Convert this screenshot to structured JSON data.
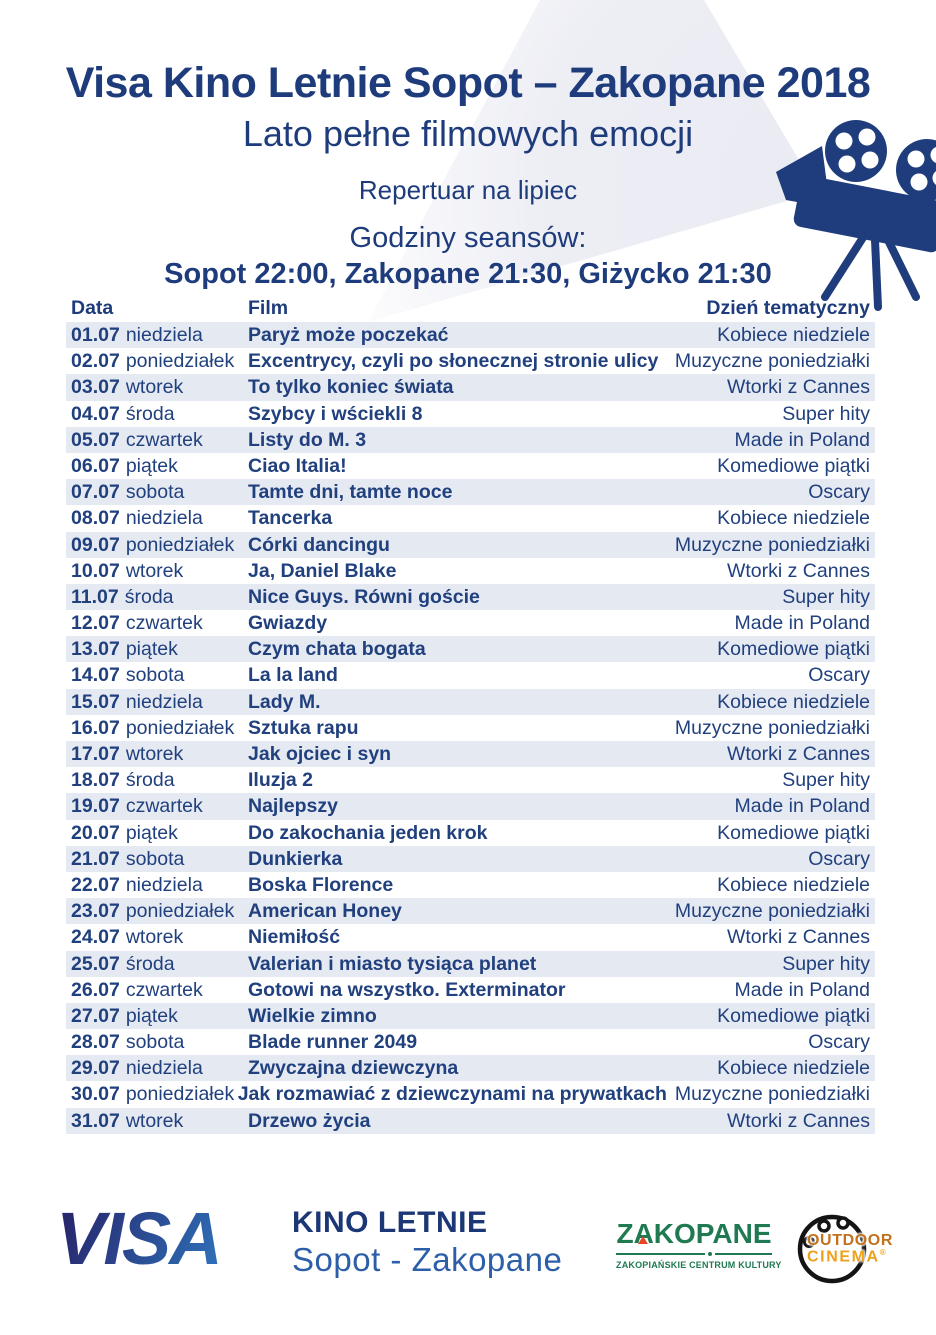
{
  "header": {
    "title": "Visa Kino Letnie Sopot – Zakopane 2018",
    "subtitle": "Lato pełne filmowych emocji",
    "repertoire": "Repertuar na lipiec",
    "showtimes_label": "Godziny seansów:",
    "showtimes": "Sopot 22:00, Zakopane 21:30, Giżycko 21:30"
  },
  "table": {
    "columns": [
      "Data",
      "Film",
      "Dzień tematyczny"
    ],
    "rows": [
      {
        "date": "01.07",
        "day": "niedziela",
        "film": "Paryż może poczekać",
        "theme": "Kobiece niedziele"
      },
      {
        "date": "02.07",
        "day": "poniedziałek",
        "film": "Excentrycy, czyli po słonecznej stronie ulicy",
        "theme": "Muzyczne poniedziałki"
      },
      {
        "date": "03.07",
        "day": "wtorek",
        "film": "To tylko koniec świata",
        "theme": "Wtorki z Cannes"
      },
      {
        "date": "04.07",
        "day": "środa",
        "film": "Szybcy i wściekli 8",
        "theme": "Super hity"
      },
      {
        "date": "05.07",
        "day": "czwartek",
        "film": "Listy do M. 3",
        "theme": "Made in Poland"
      },
      {
        "date": "06.07",
        "day": "piątek",
        "film": "Ciao Italia!",
        "theme": "Komediowe piątki"
      },
      {
        "date": "07.07",
        "day": "sobota",
        "film": "Tamte dni, tamte noce",
        "theme": "Oscary"
      },
      {
        "date": "08.07",
        "day": "niedziela",
        "film": "Tancerka",
        "theme": "Kobiece niedziele"
      },
      {
        "date": "09.07",
        "day": "poniedziałek",
        "film": "Córki dancingu",
        "theme": "Muzyczne poniedziałki"
      },
      {
        "date": "10.07",
        "day": "wtorek",
        "film": "Ja, Daniel Blake",
        "theme": "Wtorki z Cannes"
      },
      {
        "date": "11.07",
        "day": "środa",
        "film": "Nice Guys. Równi goście",
        "theme": "Super hity"
      },
      {
        "date": "12.07",
        "day": "czwartek",
        "film": "Gwiazdy",
        "theme": "Made in Poland"
      },
      {
        "date": "13.07",
        "day": "piątek",
        "film": "Czym chata bogata",
        "theme": "Komediowe piątki"
      },
      {
        "date": "14.07",
        "day": "sobota",
        "film": "La la land",
        "theme": "Oscary"
      },
      {
        "date": "15.07",
        "day": "niedziela",
        "film": "Lady M.",
        "theme": "Kobiece niedziele"
      },
      {
        "date": "16.07",
        "day": "poniedziałek",
        "film": "Sztuka rapu",
        "theme": "Muzyczne poniedziałki"
      },
      {
        "date": "17.07",
        "day": "wtorek",
        "film": "Jak ojciec i syn",
        "theme": "Wtorki z Cannes"
      },
      {
        "date": "18.07",
        "day": "środa",
        "film": "Iluzja 2",
        "theme": "Super hity"
      },
      {
        "date": "19.07",
        "day": "czwartek",
        "film": "Najlepszy",
        "theme": "Made in Poland"
      },
      {
        "date": "20.07",
        "day": "piątek",
        "film": "Do zakochania jeden krok",
        "theme": "Komediowe piątki"
      },
      {
        "date": "21.07",
        "day": "sobota",
        "film": "Dunkierka",
        "theme": "Oscary"
      },
      {
        "date": "22.07",
        "day": "niedziela",
        "film": "Boska Florence",
        "theme": "Kobiece niedziele"
      },
      {
        "date": "23.07",
        "day": "poniedziałek",
        "film": "American Honey",
        "theme": "Muzyczne poniedziałki"
      },
      {
        "date": "24.07",
        "day": "wtorek",
        "film": "Niemiłość",
        "theme": "Wtorki z Cannes"
      },
      {
        "date": "25.07",
        "day": "środa",
        "film": "Valerian i miasto tysiąca planet",
        "theme": "Super hity"
      },
      {
        "date": "26.07",
        "day": "czwartek",
        "film": "Gotowi na wszystko. Exterminator",
        "theme": "Made in Poland"
      },
      {
        "date": "27.07",
        "day": "piątek",
        "film": "Wielkie zimno",
        "theme": "Komediowe piątki"
      },
      {
        "date": "28.07",
        "day": "sobota",
        "film": "Blade runner 2049",
        "theme": "Oscary"
      },
      {
        "date": "29.07",
        "day": "niedziela",
        "film": "Zwyczajna dziewczyna",
        "theme": "Kobiece niedziele"
      },
      {
        "date": "30.07",
        "day": "poniedziałek",
        "film": "Jak rozmawiać z dziewczynami na prywatkach",
        "theme": "Muzyczne poniedziałki"
      },
      {
        "date": "31.07",
        "day": "wtorek",
        "film": "Drzewo życia",
        "theme": "Wtorki z Cannes"
      }
    ]
  },
  "footer": {
    "visa": "VISA",
    "kino_letnie": "KINO LETNIE",
    "sopot_zakopane": "Sopot - Zakopane",
    "zakopane": "ZAKOPANE",
    "zakopane_tagline": "ZAKOPIAŃSKIE CENTRUM KULTURY",
    "outdoor_line1": "OUTDOOR",
    "outdoor_line2": "CINEMA",
    "registered": "®"
  },
  "colors": {
    "navy_text": "#1e3c7c",
    "footer_blue": "#2d5fa9",
    "row_shade": "#e5e9f2",
    "beam": "#e9eaf2",
    "zakopane_green": "#1f7a52",
    "zakopane_accent_red": "#e84427",
    "outdoor_orange_dark": "#c2711c",
    "outdoor_orange": "#eda11a"
  }
}
